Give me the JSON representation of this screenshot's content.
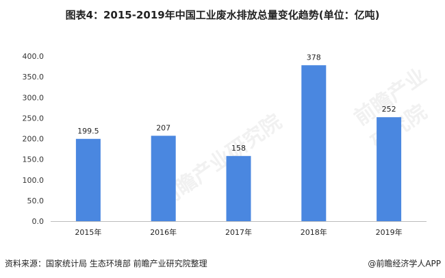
{
  "chart_data": {
    "type": "bar",
    "title": "图表4：2015-2019年中国工业废水排放总量变化趋势(单位：亿吨)",
    "categories": [
      "2015年",
      "2016年",
      "2017年",
      "2018年",
      "2019年"
    ],
    "values": [
      199.5,
      207,
      158,
      378,
      252
    ],
    "data_labels": [
      "199.5",
      "207",
      "158",
      "378",
      "252"
    ],
    "ylim": [
      0,
      400
    ],
    "yticks": [
      "0.0",
      "50.0",
      "100.0",
      "150.0",
      "200.0",
      "250.0",
      "300.0",
      "350.0",
      "400.0"
    ],
    "grid": false,
    "xlabel": "",
    "ylabel": "",
    "bar_color": "#4a87e0"
  },
  "footer": {
    "source": "资料来源：国家统计局 生态环境部 前瞻产业研究院整理",
    "credit": "@前瞻经济学人APP"
  },
  "watermark": "前瞻产业研究院"
}
